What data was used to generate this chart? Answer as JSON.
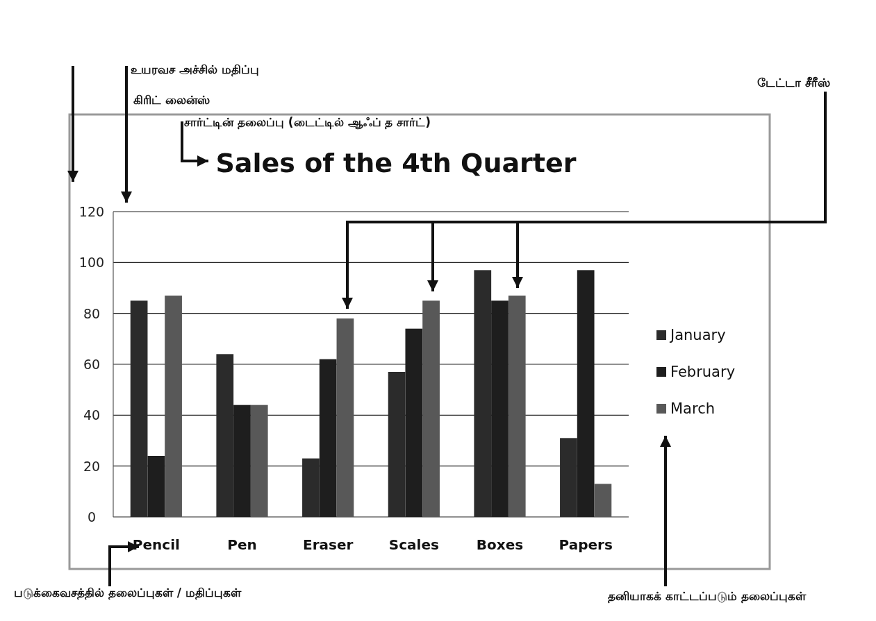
{
  "chart_data": {
    "type": "bar",
    "title": "Sales of the 4th Quarter",
    "categories": [
      "Pencil",
      "Pen",
      "Eraser",
      "Scales",
      "Boxes",
      "Papers"
    ],
    "series": [
      {
        "name": "January",
        "color": "#2b2b2b",
        "values": [
          85,
          64,
          23,
          57,
          97,
          31
        ]
      },
      {
        "name": "February",
        "color": "#1e1e1e",
        "values": [
          24,
          44,
          62,
          74,
          85,
          97
        ]
      },
      {
        "name": "March",
        "color": "#585858",
        "values": [
          87,
          44,
          78,
          85,
          87,
          13
        ]
      }
    ],
    "ylim": [
      0,
      120
    ],
    "yticks": [
      0,
      20,
      40,
      60,
      80,
      100,
      120
    ],
    "grid": "y",
    "legend": "right",
    "annotations": [
      "உயரவச அச்சில் மதிப்பு",
      "கிரிட் லைன்ஸ்",
      "சார்ட்டின் தலைப்பு (டைட்டில் ஆஃப் த சார்ட்)",
      "டேட்டா சீரீஸ்",
      "படுக்கைவசத்தில் தலைப்புகள் / மதிப்புகள்",
      "தனியாகக் காட்டப்படும் தலைப்புகள்"
    ]
  }
}
